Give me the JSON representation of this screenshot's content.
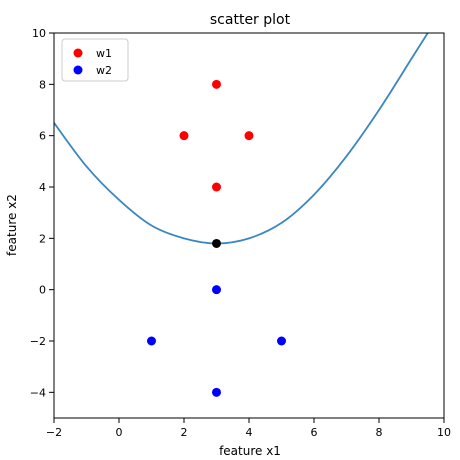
{
  "chart_data": {
    "type": "scatter",
    "title": "scatter plot",
    "xlabel": "feature x1",
    "ylabel": "feature x2",
    "xlim": [
      -2,
      10
    ],
    "ylim": [
      -5,
      10
    ],
    "xticks": [
      -2,
      0,
      2,
      4,
      6,
      8,
      10
    ],
    "yticks": [
      -4,
      -2,
      0,
      2,
      4,
      6,
      8,
      10
    ],
    "grid": false,
    "legend_position": "top-left",
    "series": [
      {
        "name": "w1",
        "color": "#ff0000",
        "x": [
          3,
          2,
          4,
          3
        ],
        "y": [
          8,
          6,
          6,
          4
        ]
      },
      {
        "name": "w2",
        "color": "#0000ff",
        "x": [
          3,
          1,
          5,
          3
        ],
        "y": [
          0,
          -2,
          -2,
          -4
        ]
      }
    ],
    "curve": {
      "color": "#3a87bf",
      "x": [
        -2,
        -1,
        0,
        1,
        2,
        3,
        4,
        5,
        6,
        7,
        8,
        9,
        9.5
      ],
      "y": [
        6.5,
        4.8,
        3.5,
        2.5,
        2.0,
        1.8,
        2.0,
        2.6,
        3.7,
        5.2,
        7.0,
        9.0,
        10.0
      ]
    },
    "point": {
      "color": "#000000",
      "x": 3,
      "y": 1.8
    }
  }
}
